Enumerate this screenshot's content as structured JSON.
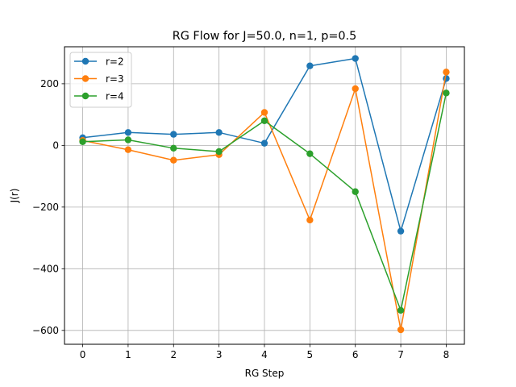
{
  "chart_data": {
    "type": "line",
    "title": "RG Flow for J=50.0, n=1, p=0.5",
    "xlabel": "RG Step",
    "ylabel": "J(r)",
    "xlim": [
      -0.4,
      8.4
    ],
    "ylim": [
      -645,
      320
    ],
    "xticks": [
      0,
      1,
      2,
      3,
      4,
      5,
      6,
      7,
      8
    ],
    "yticks": [
      -600,
      -400,
      -200,
      0,
      200
    ],
    "ytick_labels": [
      "−600",
      "−400",
      "−200",
      "0",
      "200"
    ],
    "grid": true,
    "legend_position": "top-left",
    "x": [
      0,
      1,
      2,
      3,
      4,
      5,
      6,
      7,
      8
    ],
    "series": [
      {
        "name": "r=2",
        "color": "#1f77b4",
        "values": [
          25,
          42,
          36,
          42,
          7,
          258,
          282,
          -278,
          217
        ]
      },
      {
        "name": "r=3",
        "color": "#ff7f0e",
        "values": [
          16,
          -14,
          -48,
          -30,
          107,
          -242,
          184,
          -598,
          238
        ]
      },
      {
        "name": "r=4",
        "color": "#2ca02c",
        "values": [
          12,
          18,
          -9,
          -20,
          80,
          -27,
          -150,
          -535,
          170
        ]
      }
    ]
  }
}
